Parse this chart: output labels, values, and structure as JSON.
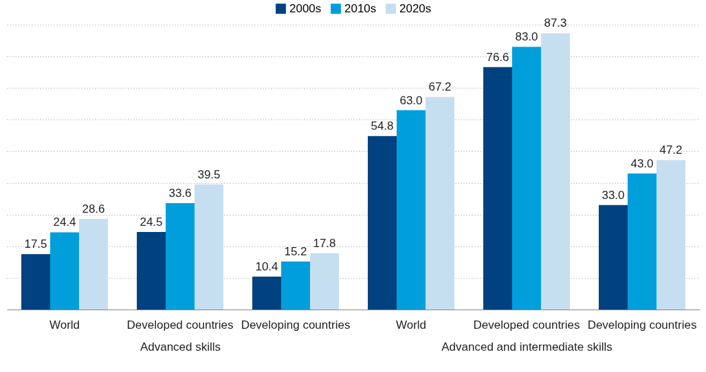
{
  "chart_data": [
    {
      "type": "bar",
      "xlabel": "Advanced skills",
      "categories": [
        "World",
        "Developed countries",
        "Developing countries"
      ],
      "series": [
        {
          "name": "2000s",
          "color": "#00427f",
          "values": [
            17.5,
            24.5,
            10.4
          ],
          "value_labels": [
            "17.5",
            "24.5",
            "10.4"
          ]
        },
        {
          "name": "2010s",
          "color": "#009fdb",
          "values": [
            24.4,
            33.6,
            15.2
          ],
          "value_labels": [
            "24.4",
            "33.6",
            "15.2"
          ]
        },
        {
          "name": "2020s",
          "color": "#c5dff0",
          "values": [
            28.6,
            39.5,
            17.8
          ],
          "value_labels": [
            "28.6",
            "39.5",
            "17.8"
          ]
        }
      ],
      "ylim": [
        0,
        90
      ],
      "yticks": [
        {
          "value": 10,
          "label": null
        },
        {
          "value": 20,
          "label": null
        },
        {
          "value": 30,
          "label": null
        },
        {
          "value": 40,
          "label": null
        },
        {
          "value": 50,
          "label": null
        },
        {
          "value": 60,
          "label": null
        },
        {
          "value": 70,
          "label": null
        },
        {
          "value": 80,
          "label": null
        },
        {
          "value": 90,
          "label": null
        }
      ],
      "grid": "y",
      "legend": "top"
    },
    {
      "type": "bar",
      "xlabel": "Advanced and intermediate skills",
      "categories": [
        "World",
        "Developed countries",
        "Developing countries"
      ],
      "series": [
        {
          "color": "#00427f",
          "values": [
            54.8,
            76.6,
            33.0
          ],
          "value_labels": [
            "54.8",
            "76.6",
            "33.0"
          ]
        },
        {
          "color": "#009fdb",
          "values": [
            63.0,
            83.0,
            43.0
          ],
          "value_labels": [
            "63.0",
            "83.0",
            "43.0"
          ]
        },
        {
          "color": "#c5dff0",
          "values": [
            67.2,
            87.3,
            47.2
          ],
          "value_labels": [
            "67.2",
            "87.3",
            "47.2"
          ]
        }
      ],
      "ylim": [
        0,
        90
      ],
      "yticks": [
        {
          "value": 10,
          "label": null
        },
        {
          "value": 20,
          "label": null
        },
        {
          "value": 30,
          "label": null
        },
        {
          "value": 40,
          "label": null
        },
        {
          "value": 50,
          "label": null
        },
        {
          "value": 60,
          "label": null
        },
        {
          "value": 70,
          "label": null
        },
        {
          "value": 80,
          "label": null
        },
        {
          "value": 90,
          "label": null
        }
      ],
      "grid": "y"
    }
  ]
}
